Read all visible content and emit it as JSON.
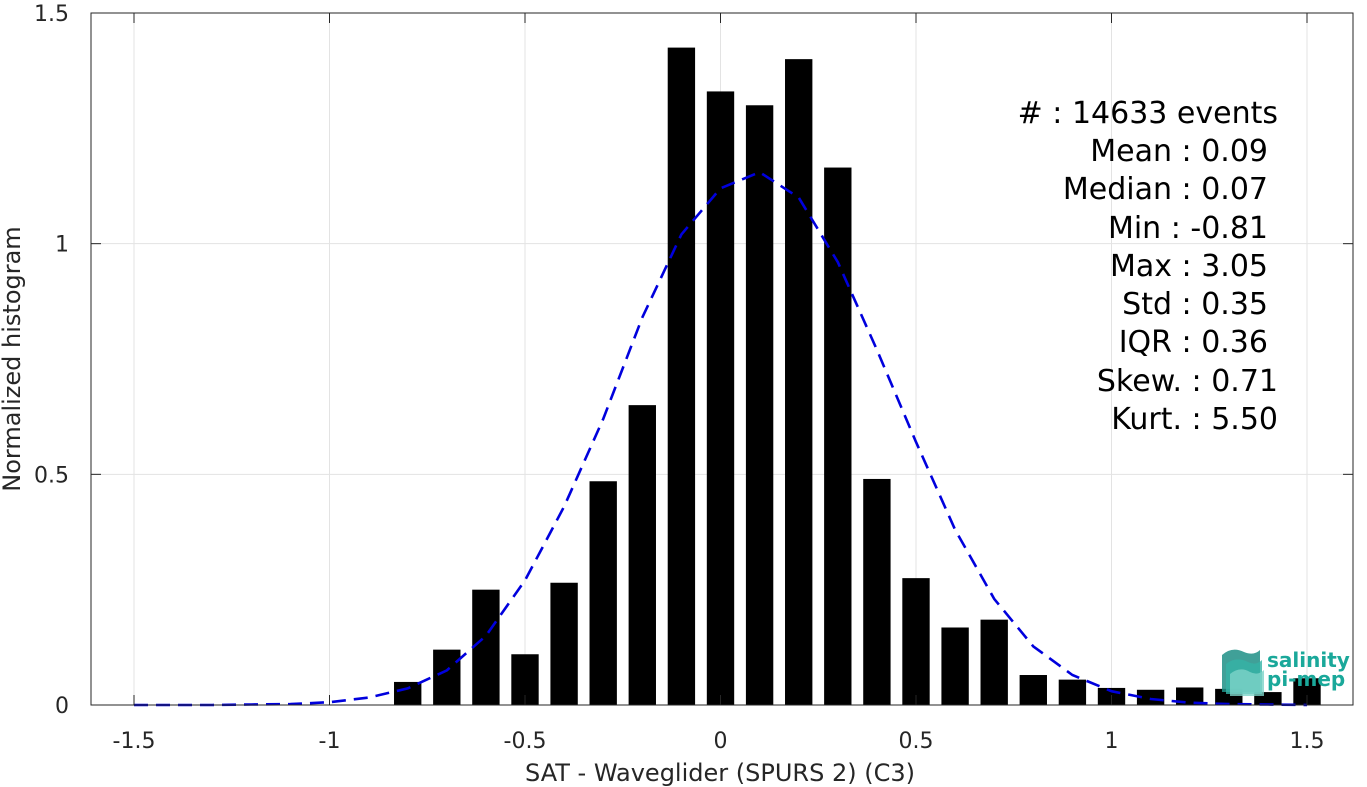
{
  "chart_data": {
    "type": "bar",
    "xlabel": "SAT - Waveglider (SPURS 2) (C3)",
    "ylabel": "Normalized histogram",
    "xlim": [
      -1.5,
      1.5
    ],
    "ylim": [
      0,
      1.5
    ],
    "xticks": [
      -1.5,
      -1,
      -0.5,
      0,
      0.5,
      1,
      1.5
    ],
    "xtick_labels": [
      "-1.5",
      "-1",
      "-0.5",
      "0",
      "0.5",
      "1",
      "1.5"
    ],
    "yticks": [
      0,
      0.5,
      1,
      1.5
    ],
    "ytick_labels": [
      "0",
      "0.5",
      "1",
      "1.5"
    ],
    "grid": true,
    "series": [
      {
        "kind": "bar",
        "color": "#000000",
        "x": [
          -0.8,
          -0.7,
          -0.6,
          -0.5,
          -0.4,
          -0.3,
          -0.2,
          -0.1,
          0.0,
          0.1,
          0.2,
          0.3,
          0.4,
          0.5,
          0.6,
          0.7,
          0.8,
          0.9,
          1.0,
          1.1,
          1.2,
          1.3,
          1.4,
          1.5
        ],
        "values": [
          0.05,
          0.12,
          0.25,
          0.11,
          0.265,
          0.485,
          0.65,
          1.425,
          1.33,
          1.3,
          1.4,
          1.165,
          0.49,
          0.275,
          0.168,
          0.185,
          0.065,
          0.055,
          0.037,
          0.033,
          0.038,
          0.035,
          0.028,
          0.058
        ]
      },
      {
        "kind": "line",
        "style": "dashed",
        "color": "#0000dd",
        "x": [
          -1.5,
          -1.4,
          -1.3,
          -1.2,
          -1.1,
          -1.0,
          -0.9,
          -0.8,
          -0.7,
          -0.6,
          -0.5,
          -0.4,
          -0.3,
          -0.2,
          -0.1,
          0.0,
          0.1,
          0.2,
          0.3,
          0.4,
          0.5,
          0.6,
          0.7,
          0.8,
          0.9,
          1.0,
          1.1,
          1.2,
          1.3,
          1.4,
          1.5
        ],
        "values": [
          0.0,
          0.0,
          0.0,
          0.001,
          0.002,
          0.006,
          0.016,
          0.036,
          0.075,
          0.15,
          0.27,
          0.43,
          0.62,
          0.84,
          1.02,
          1.12,
          1.155,
          1.1,
          0.96,
          0.77,
          0.57,
          0.38,
          0.23,
          0.127,
          0.065,
          0.03,
          0.013,
          0.005,
          0.002,
          0.001,
          0.0
        ]
      }
    ],
    "annotations": [
      "#  : 14633 events",
      "Mean : 0.09",
      "Median : 0.07",
      "Min : -0.81",
      "Max : 3.05",
      "Std : 0.35",
      "IQR : 0.36",
      "Skew. : 0.71",
      "Kurt. : 5.50"
    ],
    "logo": {
      "line1": "salinity",
      "line2": "pi-mep",
      "color": "#1aa89a"
    }
  }
}
